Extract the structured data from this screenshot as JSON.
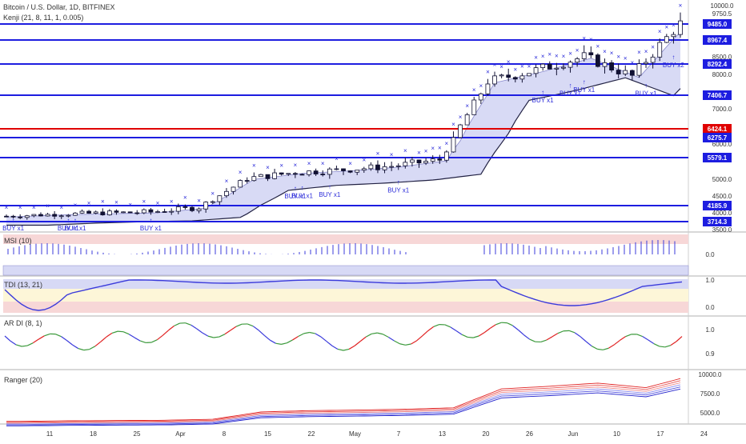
{
  "header": {
    "title": "Bitcoin / U.S. Dollar, 1D, BITFINEX",
    "indicator": "Kenji (21, 8, 11, 1, 0.005)"
  },
  "panes": {
    "msi": "MSI (10)",
    "tdi": "TDI (13, 21)",
    "ardi": "AR DI (8, 1)",
    "ranger": "Ranger (20)"
  },
  "colors": {
    "level_line": "#1d1de0",
    "red_level": "#e00000",
    "candle_up": "#ffffff",
    "candle_down": "#111133",
    "x_marker": "#3333dd",
    "band_fill": "#d8daf5"
  },
  "chart_data": [
    {
      "type": "candlestick",
      "title": "Bitcoin / U.S. Dollar, 1D, BITFINEX",
      "ylim": [
        3500,
        10000
      ],
      "y_ticks": [
        "10000.0",
        "9750.5",
        "8500.0",
        "8000.0",
        "7000.0",
        "6000.0",
        "5000.0",
        "4500.0",
        "4000.0",
        "3500.0"
      ],
      "x_ticks": [
        "11",
        "18",
        "25",
        "Apr",
        "8",
        "15",
        "22",
        "May",
        "7",
        "13",
        "20",
        "26",
        "Jun",
        "10",
        "17",
        "24"
      ],
      "levels": [
        {
          "label": "9485.0",
          "value": 9485.0,
          "color": "blue"
        },
        {
          "label": "8967.4",
          "value": 8967.4,
          "color": "blue"
        },
        {
          "label": "8292.4",
          "value": 8292.4,
          "color": "blue"
        },
        {
          "label": "7406.7",
          "value": 7406.7,
          "color": "blue"
        },
        {
          "label": "6424.1",
          "value": 6424.1,
          "color": "red"
        },
        {
          "label": "6275.7",
          "value": 6275.7,
          "color": "blue"
        },
        {
          "label": "5579.1",
          "value": 5579.1,
          "color": "blue"
        },
        {
          "label": "4185.9",
          "value": 4185.9,
          "color": "blue"
        },
        {
          "label": "3714.3",
          "value": 3714.3,
          "color": "blue"
        }
      ],
      "signals": [
        "BUY x1",
        "BUY x1",
        "BUY x1",
        "BUY x1",
        "BUY x1",
        "BUY x1",
        "BUY x1",
        "BUY x1",
        "BUY x1",
        "BUY x1",
        "BUY x1",
        "BUY x1",
        "BUY x2"
      ],
      "close_x": [
        0,
        7,
        14,
        21,
        28,
        35,
        42,
        49,
        56,
        63,
        70,
        77,
        84,
        91,
        98
      ],
      "close": [
        3890,
        3950,
        3990,
        4020,
        4140,
        5020,
        5180,
        5250,
        5350,
        5520,
        7800,
        8120,
        8500,
        7950,
        9480
      ]
    },
    {
      "type": "bar",
      "title": "MSI (10)",
      "y_ticks": [
        "0.0"
      ]
    },
    {
      "type": "line",
      "title": "TDI (13, 21)",
      "y_ticks": [
        "1.0",
        "0.0"
      ]
    },
    {
      "type": "line",
      "title": "AR DI (8, 1)",
      "y_ticks": [
        "1.0",
        "0.9"
      ]
    },
    {
      "type": "line",
      "title": "Ranger (20)",
      "y_ticks": [
        "10000.0",
        "7500.0",
        "5000.0"
      ]
    }
  ]
}
